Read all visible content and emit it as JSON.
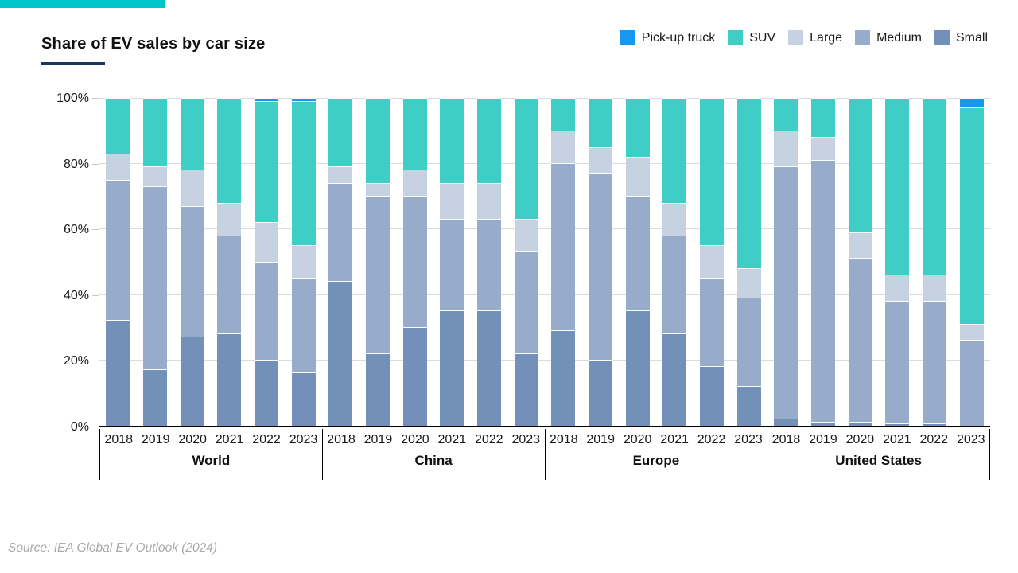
{
  "page": {
    "accent_color": "#00c5c9",
    "underline_color": "#17375e"
  },
  "header": {
    "title": "Share of EV sales by car size"
  },
  "legend": {
    "items": [
      {
        "label": "Pick-up truck",
        "color": "#1697f2"
      },
      {
        "label": "SUV",
        "color": "#3fcec5"
      },
      {
        "label": "Large",
        "color": "#c6d1e1"
      },
      {
        "label": "Medium",
        "color": "#97abcb"
      },
      {
        "label": "Small",
        "color": "#7390b8"
      }
    ]
  },
  "source": {
    "text": "Source: IEA Global EV Outlook (2024)"
  },
  "chart_data": {
    "type": "bar",
    "stacked": true,
    "title": "Share of EV sales by car size",
    "unit": "%",
    "ylim": [
      0,
      100
    ],
    "ytick_labels": [
      "0%",
      "20%",
      "40%",
      "60%",
      "80%",
      "100%"
    ],
    "grid": true,
    "legend_position": "top-right",
    "years": [
      "2018",
      "2019",
      "2020",
      "2021",
      "2022",
      "2023"
    ],
    "stack_order": [
      "Small",
      "Medium",
      "Large",
      "SUV",
      "Pick-up truck"
    ],
    "series_colors": {
      "Small": "#7390b8",
      "Medium": "#97abcb",
      "Large": "#c6d1e1",
      "SUV": "#3fcec5",
      "Pick-up truck": "#1697f2"
    },
    "groups": [
      {
        "label": "World",
        "values": [
          [
            32,
            43,
            8,
            17,
            0
          ],
          [
            17,
            56,
            6,
            21,
            0
          ],
          [
            27,
            40,
            11,
            22,
            0
          ],
          [
            28,
            30,
            10,
            32,
            0
          ],
          [
            20,
            30,
            12,
            37,
            1
          ],
          [
            16,
            29,
            10,
            44,
            1
          ]
        ]
      },
      {
        "label": "China",
        "values": [
          [
            44,
            30,
            5,
            21,
            0
          ],
          [
            22,
            48,
            4,
            26,
            0
          ],
          [
            30,
            40,
            8,
            22,
            0
          ],
          [
            35,
            28,
            11,
            26,
            0
          ],
          [
            35,
            28,
            11,
            26,
            0
          ],
          [
            22,
            31,
            10,
            37,
            0
          ]
        ]
      },
      {
        "label": "Europe",
        "values": [
          [
            29,
            51,
            10,
            10,
            0
          ],
          [
            20,
            57,
            8,
            15,
            0
          ],
          [
            35,
            35,
            12,
            18,
            0
          ],
          [
            28,
            30,
            10,
            32,
            0
          ],
          [
            18,
            27,
            10,
            45,
            0
          ],
          [
            12,
            27,
            9,
            52,
            0
          ]
        ]
      },
      {
        "label": "United States",
        "values": [
          [
            2,
            77,
            11,
            10,
            0
          ],
          [
            1,
            80,
            7,
            12,
            0
          ],
          [
            1,
            50,
            8,
            41,
            0
          ],
          [
            0.5,
            37.5,
            8,
            54,
            0
          ],
          [
            0.5,
            37.5,
            8,
            54,
            0
          ],
          [
            0,
            26,
            5,
            66,
            3
          ]
        ]
      }
    ]
  }
}
